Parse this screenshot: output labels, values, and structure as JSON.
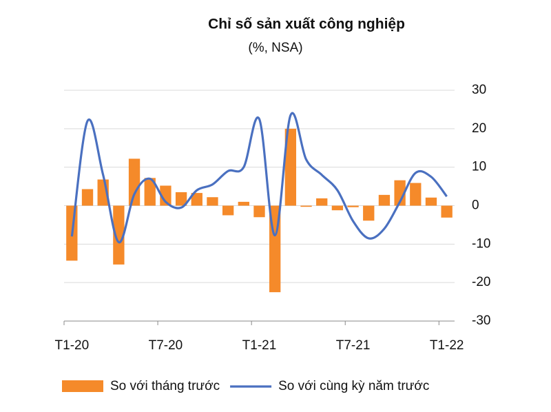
{
  "chart_data": {
    "type": "bar-line",
    "title": "Chỉ số sản xuất công nghiệp",
    "subtitle": "(%, NSA)",
    "categories": [
      "T1-20",
      null,
      null,
      null,
      null,
      null,
      "T7-20",
      null,
      null,
      null,
      null,
      null,
      "T1-21",
      null,
      null,
      null,
      null,
      null,
      "T7-21",
      null,
      null,
      null,
      null,
      null,
      "T1-22"
    ],
    "series": [
      {
        "name": "So với tháng trước",
        "type": "bar",
        "color": "#f58a2a",
        "values": [
          -14.3,
          4.3,
          6.8,
          -15.3,
          12.2,
          7.2,
          5.2,
          3.5,
          3.3,
          2.2,
          -2.5,
          1.0,
          -3.0,
          -22.5,
          20.0,
          -0.3,
          1.9,
          -1.2,
          -0.4,
          -3.9,
          2.8,
          6.6,
          5.9,
          2.1,
          -3.1
        ]
      },
      {
        "name": "So với cùng kỳ năm trước",
        "type": "line",
        "color": "#4a70c0",
        "values": [
          -8.0,
          22.0,
          8.0,
          -9.5,
          3.0,
          7.0,
          1.0,
          -0.5,
          4.0,
          5.5,
          9.0,
          10.0,
          22.5,
          -7.7,
          23.5,
          12.0,
          8.0,
          4.0,
          -4.0,
          -8.5,
          -6.0,
          1.0,
          8.5,
          7.5,
          2.4
        ]
      }
    ],
    "ylim": [
      -30,
      30
    ],
    "yticks": [
      -30,
      -20,
      -10,
      0,
      10,
      20,
      30
    ],
    "grid": true,
    "legend": "bottom"
  }
}
